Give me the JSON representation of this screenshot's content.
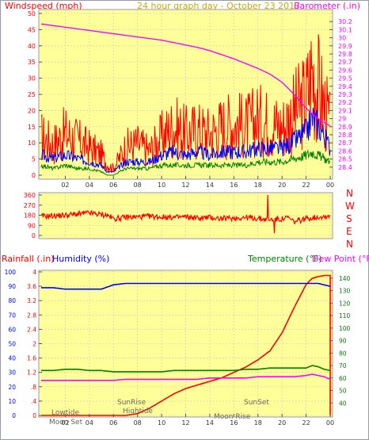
{
  "header": {
    "title": "24 hour graph day - October 23 2017",
    "left_label": "Windspeed (mph)",
    "right_label": "Barometer (.in)"
  },
  "labels_mid": {
    "directions": [
      "N",
      "W",
      "S",
      "E",
      "N"
    ]
  },
  "labels_bottom": {
    "rain_label": "Rainfall (.in)",
    "humidity_label": "Humidity (%)",
    "temperature_label": "Temperature (°F)",
    "dewpoint_label": "Dew Point (°F)"
  },
  "events": {
    "lowtide": "Lowtide",
    "moonset": "Moon Set",
    "sunrise": "SunRise",
    "hightide": "Hightide",
    "moonrise": "Moon Rise",
    "sunset": "SunSet"
  },
  "colors": {
    "plot_bg": "#ffff99",
    "frame": "#9999a6",
    "red": "#ff0000",
    "blue": "#0000ff",
    "green": "#008000",
    "magenta": "#ff00ff",
    "gold": "#ccaa00",
    "grid": "#c8c8c8"
  },
  "chart_data": [
    {
      "type": "line",
      "name": "wind-barometer",
      "xlabel": "",
      "ylabel": "Windspeed (mph)",
      "x_ticks": [
        "02",
        "04",
        "06",
        "08",
        "10",
        "12",
        "14",
        "16",
        "18",
        "20",
        "22",
        "00"
      ],
      "ylim": [
        0,
        50
      ],
      "y_ticks": [
        0,
        5,
        10,
        15,
        20,
        25,
        30,
        35,
        40,
        45,
        50
      ],
      "y2lim": [
        28.3,
        30.3
      ],
      "y2_ticks": [
        28.4,
        28.5,
        28.6,
        28.7,
        28.8,
        28.9,
        29.0,
        29.1,
        29.2,
        29.3,
        29.4,
        29.5,
        29.6,
        29.7,
        29.8,
        29.9,
        30.0,
        30.1,
        30.2
      ],
      "y2_tick_labels": [
        "28.4",
        "28.5",
        "28.6",
        "28.7",
        "28.8",
        "28.9",
        "29",
        "29.1",
        "29.2",
        "29.3",
        "29.4",
        "29.5",
        "29.6",
        "29.7",
        "29.8",
        "29.9",
        "30",
        "30.1",
        "30.2"
      ],
      "hours": [
        0,
        1,
        2,
        3,
        4,
        5,
        5.5,
        6,
        7,
        8,
        9,
        10,
        11,
        12,
        13,
        14,
        15,
        16,
        17,
        18,
        19,
        20,
        21,
        22,
        22.5,
        23,
        23.5,
        24
      ],
      "series": [
        {
          "name": "Gust",
          "values": [
            11,
            9,
            12,
            10,
            8,
            6,
            3,
            2,
            8,
            9,
            7,
            11,
            14,
            12,
            13,
            12,
            14,
            15,
            14,
            16,
            15,
            14,
            18,
            22,
            30,
            25,
            20,
            14
          ]
        },
        {
          "name": "Windspeed",
          "values": [
            6,
            5,
            6,
            5,
            4,
            3,
            1,
            1,
            4,
            4,
            4,
            6,
            7,
            6,
            7,
            6,
            7,
            7,
            7,
            8,
            8,
            8,
            10,
            13,
            17,
            15,
            12,
            8
          ]
        },
        {
          "name": "Average",
          "values": [
            3,
            2,
            3,
            2,
            2,
            1,
            0,
            0,
            2,
            2,
            2,
            3,
            3,
            3,
            3,
            3,
            3,
            3,
            3,
            4,
            4,
            4,
            5,
            6,
            7,
            6,
            5,
            4
          ]
        },
        {
          "name": "Barometer",
          "values": [
            30.17,
            30.15,
            30.13,
            30.11,
            30.09,
            30.07,
            30.06,
            30.05,
            30.03,
            30.01,
            29.99,
            29.97,
            29.94,
            29.91,
            29.88,
            29.84,
            29.79,
            29.74,
            29.68,
            29.62,
            29.55,
            29.45,
            29.3,
            29.13,
            29.06,
            29.0,
            28.95,
            28.91
          ]
        }
      ]
    },
    {
      "type": "line",
      "name": "wind-direction",
      "ylim": [
        0,
        360
      ],
      "y_ticks": [
        0,
        90,
        180,
        270,
        360
      ],
      "hours": [
        0,
        1,
        2,
        3,
        4,
        5,
        5.5,
        6,
        7,
        8,
        9,
        10,
        11,
        12,
        13,
        14,
        15,
        16,
        17,
        18,
        19,
        20,
        20.5,
        21,
        22,
        23,
        24
      ],
      "series": [
        {
          "name": "Direction",
          "values": [
            170,
            175,
            180,
            190,
            200,
            185,
            180,
            150,
            160,
            165,
            170,
            165,
            160,
            165,
            155,
            160,
            150,
            155,
            160,
            150,
            140,
            145,
            160,
            120,
            150,
            165,
            175
          ]
        }
      ]
    },
    {
      "type": "line",
      "name": "rain-humidity-temperature",
      "xlabel": "",
      "ylabel": "Rainfall (.in)",
      "x_ticks": [
        "02",
        "04",
        "06",
        "08",
        "10",
        "12",
        "14",
        "16",
        "18",
        "20",
        "22",
        "00"
      ],
      "ylim": [
        0,
        4.0
      ],
      "y_ticks": [
        0,
        0.4,
        0.8,
        1.2,
        1.6,
        2.0,
        2.4,
        2.8,
        3.2,
        3.6,
        4.0
      ],
      "y_tick_labels": [
        "0",
        ".4",
        ".8",
        "1.2",
        "1.6",
        "2",
        "2.4",
        "2.8",
        "3.2",
        "3.6",
        "4"
      ],
      "humidity_ticks": [
        0,
        10,
        20,
        30,
        40,
        50,
        60,
        70,
        80,
        90,
        100
      ],
      "temp_lim": [
        30,
        145
      ],
      "temp_ticks": [
        40,
        50,
        60,
        70,
        80,
        90,
        100,
        110,
        120,
        130,
        140
      ],
      "hours": [
        0,
        1,
        2,
        3,
        4,
        5,
        6,
        7,
        8,
        9,
        10,
        11,
        12,
        13,
        14,
        15,
        16,
        17,
        18,
        19,
        20,
        21,
        22,
        22.5,
        23,
        23.5,
        24
      ],
      "series": [
        {
          "name": "Rainfall",
          "values": [
            0,
            0,
            0,
            0,
            0,
            0,
            0,
            0,
            0.05,
            0.2,
            0.4,
            0.6,
            0.75,
            0.85,
            0.95,
            1.05,
            1.2,
            1.35,
            1.55,
            1.8,
            2.3,
            3.0,
            3.65,
            3.82,
            3.87,
            3.9,
            3.9
          ]
        },
        {
          "name": "Humidity",
          "values": [
            89,
            89,
            88,
            88,
            88,
            88,
            91,
            92,
            92,
            92,
            92,
            92,
            92,
            92,
            92,
            92,
            92,
            92,
            92,
            92,
            92,
            92,
            92,
            92,
            92,
            91,
            90
          ]
        },
        {
          "name": "Temperature",
          "values": [
            66,
            66,
            67,
            67,
            66,
            66,
            65,
            65,
            65,
            65,
            65,
            66,
            66,
            66,
            66,
            66,
            66,
            67,
            67,
            68,
            68,
            68,
            68,
            70,
            69,
            67,
            66
          ]
        },
        {
          "name": "Dew Point",
          "values": [
            58,
            58,
            58,
            58,
            58,
            58,
            58,
            59,
            59,
            59,
            59,
            59,
            59,
            59,
            60,
            60,
            60,
            60,
            61,
            61,
            61,
            61,
            62,
            63,
            62,
            61,
            59
          ]
        }
      ]
    }
  ]
}
